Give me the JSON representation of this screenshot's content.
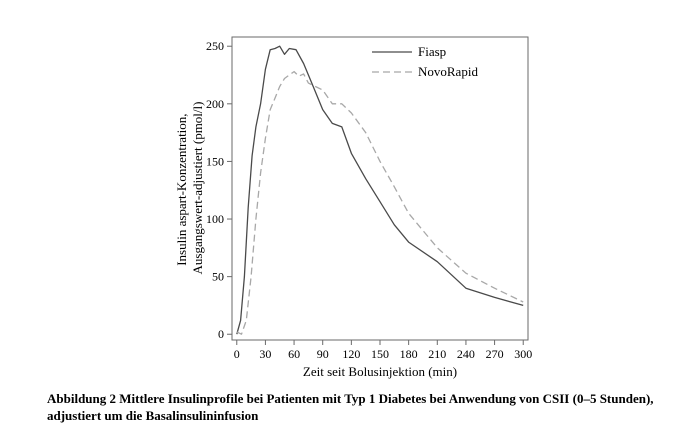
{
  "chart_data": {
    "type": "line",
    "xlabel": "Zeit seit Bolusinjektion (min)",
    "ylabel_lines": [
      "Insulin aspart-Konzentration,",
      "Ausgangswert-adjustiert (pmol/l)"
    ],
    "xlim": [
      -5,
      305
    ],
    "ylim": [
      -5,
      258
    ],
    "x_ticks": [
      0,
      30,
      60,
      90,
      120,
      150,
      180,
      210,
      240,
      270,
      300
    ],
    "y_ticks": [
      0,
      50,
      100,
      150,
      200,
      250
    ],
    "legend_position": "top-right",
    "grid": false,
    "series": [
      {
        "name": "Fiasp",
        "style": "solid",
        "color": "#4a4a4a",
        "points": [
          [
            0,
            0
          ],
          [
            4,
            12
          ],
          [
            8,
            50
          ],
          [
            12,
            110
          ],
          [
            16,
            155
          ],
          [
            20,
            180
          ],
          [
            25,
            200
          ],
          [
            30,
            230
          ],
          [
            35,
            247
          ],
          [
            40,
            248
          ],
          [
            45,
            250
          ],
          [
            50,
            243
          ],
          [
            55,
            248
          ],
          [
            62,
            247
          ],
          [
            70,
            235
          ],
          [
            80,
            215
          ],
          [
            90,
            195
          ],
          [
            100,
            183
          ],
          [
            110,
            180
          ],
          [
            120,
            157
          ],
          [
            135,
            135
          ],
          [
            150,
            115
          ],
          [
            165,
            95
          ],
          [
            180,
            80
          ],
          [
            210,
            63
          ],
          [
            240,
            40
          ],
          [
            270,
            32
          ],
          [
            300,
            25
          ]
        ]
      },
      {
        "name": "NovoRapid",
        "style": "dashed",
        "color": "#a8a8a8",
        "points": [
          [
            0,
            2
          ],
          [
            5,
            0
          ],
          [
            10,
            12
          ],
          [
            15,
            50
          ],
          [
            20,
            100
          ],
          [
            25,
            140
          ],
          [
            30,
            170
          ],
          [
            35,
            195
          ],
          [
            40,
            205
          ],
          [
            45,
            215
          ],
          [
            50,
            222
          ],
          [
            55,
            225
          ],
          [
            60,
            228
          ],
          [
            65,
            224
          ],
          [
            70,
            226
          ],
          [
            75,
            218
          ],
          [
            80,
            216
          ],
          [
            90,
            212
          ],
          [
            100,
            200
          ],
          [
            110,
            200
          ],
          [
            120,
            192
          ],
          [
            135,
            175
          ],
          [
            150,
            150
          ],
          [
            165,
            128
          ],
          [
            180,
            105
          ],
          [
            210,
            75
          ],
          [
            240,
            53
          ],
          [
            270,
            40
          ],
          [
            300,
            28
          ]
        ]
      }
    ]
  },
  "caption": "Abbildung 2 Mittlere Insulinprofile bei Patienten mit Typ 1 Diabetes bei Anwendung von CSII (0–5 Stunden), adjustiert um die Basalinsulininfusion"
}
